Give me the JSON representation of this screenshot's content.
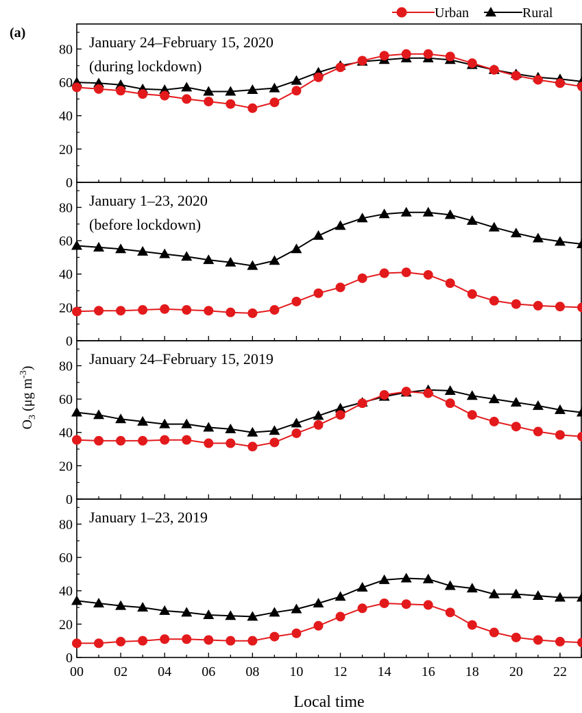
{
  "figure_label": "(a)",
  "chart_data": {
    "type": "line",
    "xlabel": "Local time",
    "ylabel": "O3 (μg m-3)",
    "ylabel_parts": {
      "base": "O",
      "sub": "3",
      "unit_open": " (μg m",
      "sup": "-3",
      "unit_close": ")"
    },
    "x_ticks": [
      "00",
      "02",
      "04",
      "06",
      "08",
      "10",
      "12",
      "14",
      "16",
      "18",
      "20",
      "22"
    ],
    "xlim": [
      0,
      23
    ],
    "ylim": [
      0,
      95
    ],
    "y_ticks": [
      0,
      20,
      40,
      60,
      80
    ],
    "x": [
      0,
      1,
      2,
      3,
      4,
      5,
      6,
      7,
      8,
      9,
      10,
      11,
      12,
      13,
      14,
      15,
      16,
      17,
      18,
      19,
      20,
      21,
      22,
      23
    ],
    "legend": {
      "position": "top-right",
      "entries": [
        {
          "name": "Urban",
          "color": "#e31a1c",
          "marker": "circle"
        },
        {
          "name": "Rural",
          "color": "#000000",
          "marker": "triangle"
        }
      ]
    },
    "panels": [
      {
        "title_lines": [
          "January 24–February 15, 2020",
          "(during lockdown)"
        ],
        "series": [
          {
            "name": "Urban",
            "values": [
              57,
              56,
              55,
              53,
              52,
              50,
              48.5,
              47,
              44.5,
              48,
              55,
              63,
              69,
              73,
              76,
              77,
              77,
              75.5,
              71.5,
              67.5,
              64,
              61.5,
              59.5,
              57.5
            ]
          },
          {
            "name": "Rural",
            "values": [
              60,
              59.5,
              58.5,
              56,
              55.5,
              57,
              54.5,
              54.5,
              55.5,
              56.5,
              61,
              66,
              70,
              72.5,
              73.5,
              74.5,
              74.5,
              73.5,
              70.5,
              67.5,
              65,
              63,
              62,
              60.5
            ]
          }
        ]
      },
      {
        "title_lines": [
          "January 1–23, 2020",
          "(before lockdown)"
        ],
        "series": [
          {
            "name": "Urban",
            "values": [
              17.5,
              18,
              18,
              18.5,
              19,
              18.5,
              18,
              17,
              16.5,
              18.5,
              23.5,
              28.5,
              32,
              37.5,
              40.5,
              41,
              39.5,
              34.5,
              28,
              24,
              22,
              21,
              20.5,
              20
            ]
          },
          {
            "name": "Rural",
            "values": [
              57,
              56,
              55,
              53.5,
              52,
              50.5,
              48.5,
              47,
              45,
              48,
              55,
              63,
              69,
              73.5,
              76,
              77,
              77,
              75.5,
              72,
              68,
              64.5,
              61.5,
              59.5,
              58
            ]
          }
        ]
      },
      {
        "title_lines": [
          "January 24–February 15, 2019"
        ],
        "series": [
          {
            "name": "Urban",
            "values": [
              35.5,
              35,
              35,
              35,
              35.5,
              35.5,
              33.5,
              33.5,
              31.5,
              34,
              39.5,
              44.5,
              50.5,
              57.5,
              62.5,
              64.5,
              63.5,
              57.5,
              50.5,
              46.5,
              43.5,
              40.5,
              38.5,
              37.5
            ]
          },
          {
            "name": "Rural",
            "values": [
              52,
              50.5,
              48,
              46.5,
              45,
              45,
              43,
              42,
              40,
              41,
              45.5,
              50,
              54.5,
              58,
              61.5,
              64,
              65.5,
              65,
              62,
              60,
              58,
              56,
              53.5,
              52
            ]
          }
        ]
      },
      {
        "title_lines": [
          "January 1–23, 2019"
        ],
        "series": [
          {
            "name": "Urban",
            "values": [
              8.5,
              8.5,
              9.5,
              10,
              11,
              11,
              10.5,
              10,
              10,
              12.5,
              14.5,
              19,
              24.5,
              29.5,
              32.5,
              32,
              31.5,
              27,
              19.5,
              15,
              12,
              10.5,
              9.5,
              9
            ]
          },
          {
            "name": "Rural",
            "values": [
              34,
              32.5,
              31,
              30,
              28,
              27,
              25.5,
              25,
              24.5,
              27,
              29,
              32.5,
              36.5,
              42,
              46.5,
              47.5,
              47,
              43,
              41.5,
              38,
              38,
              37,
              36,
              36
            ]
          }
        ]
      }
    ]
  }
}
